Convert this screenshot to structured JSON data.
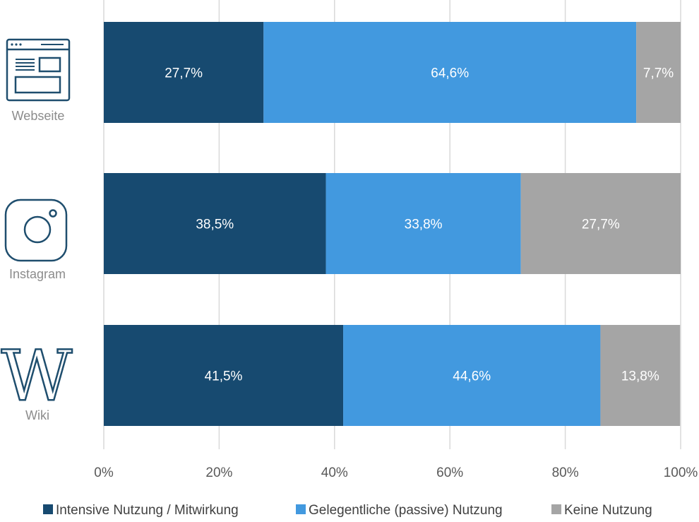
{
  "chart_data": {
    "type": "bar",
    "orientation": "horizontal",
    "stacked": true,
    "categories": [
      "Webseite",
      "Instagram",
      "Wiki"
    ],
    "icons": [
      "website-icon",
      "instagram-icon",
      "wikipedia-icon"
    ],
    "series": [
      {
        "name": "Intensive Nutzung / Mitwirkung",
        "color": "#174a70",
        "values": [
          27.7,
          38.5,
          41.5
        ],
        "labels": [
          "27,7%",
          "38,5%",
          "41,5%"
        ]
      },
      {
        "name": "Gelegentliche (passive) Nutzung",
        "color": "#4299df",
        "values": [
          64.6,
          33.8,
          44.6
        ],
        "labels": [
          "64,6%",
          "33,8%",
          "44,6%"
        ]
      },
      {
        "name": "Keine Nutzung",
        "color": "#a5a5a5",
        "values": [
          7.7,
          27.7,
          13.8
        ],
        "labels": [
          "7,7%",
          "27,7%",
          "13,8%"
        ]
      }
    ],
    "xlim": [
      0,
      100
    ],
    "xticks": [
      0,
      20,
      40,
      60,
      80,
      100
    ],
    "xtick_labels": [
      "0%",
      "20%",
      "40%",
      "60%",
      "80%",
      "100%"
    ],
    "grid": true,
    "legend_position": "bottom"
  },
  "colors": {
    "grid": "#d9d9d9",
    "icon": "#1f4e6e"
  }
}
